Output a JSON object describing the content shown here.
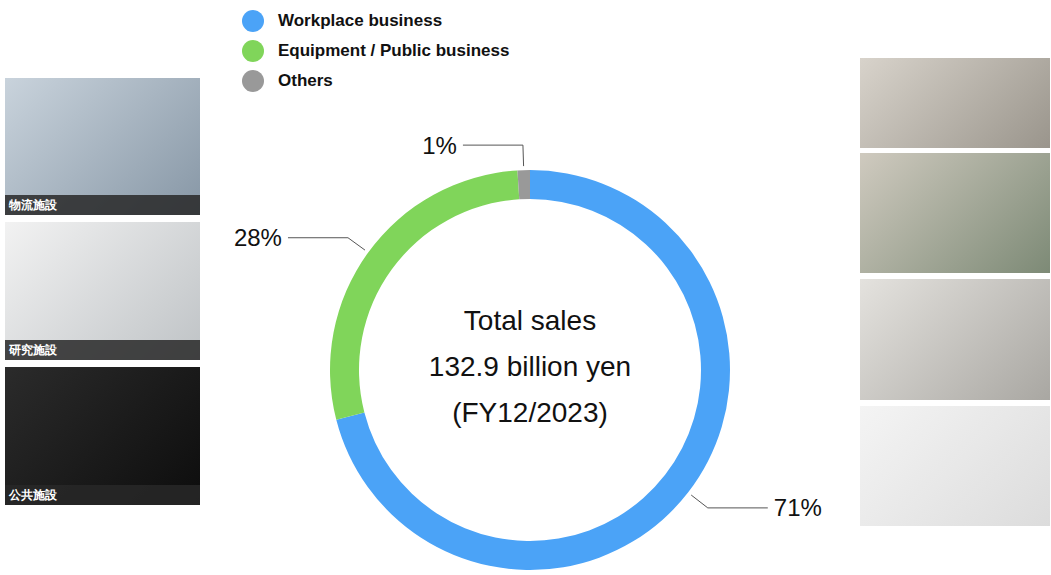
{
  "chart_data": {
    "type": "pie",
    "donut": true,
    "center_text": [
      "Total sales",
      "132.9 billion yen",
      "(FY12/2023)"
    ],
    "categories": [
      "Workplace business",
      "Equipment / Public business",
      "Others"
    ],
    "values": [
      71,
      28,
      1
    ],
    "value_labels": [
      "71%",
      "28%",
      "1%"
    ],
    "colors": [
      "#4ba3f7",
      "#80d55a",
      "#999999"
    ],
    "data_labels": true,
    "legend": "top",
    "photo_captions": [
      "物流施設",
      "研究施設",
      "公共施設"
    ]
  }
}
